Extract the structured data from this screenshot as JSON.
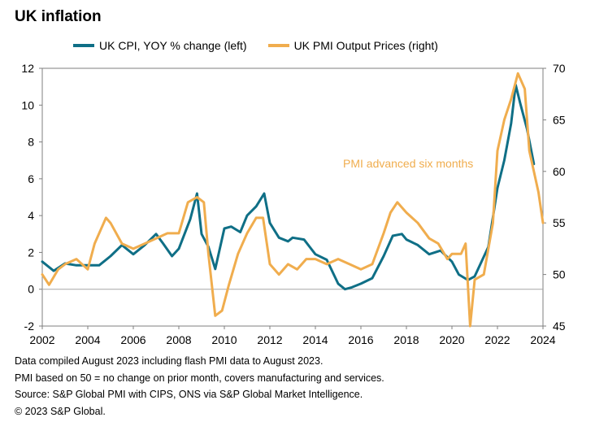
{
  "title": "UK inflation",
  "legend": [
    {
      "label": "UK CPI, YOY % change (left)",
      "color": "#0f6f86"
    },
    {
      "label": "UK PMI Output Prices (right)",
      "color": "#f0ad4e"
    }
  ],
  "notes": [
    "Data compiled August 2023 including flash PMI data to August 2023.",
    "PMI based on 50 = no change on prior month, covers manufacturing and services.",
    "Source: S&P Global PMI with CIPS, ONS via S&P Global Market Intelligence.",
    "© 2023 S&P Global."
  ],
  "chart_data": {
    "type": "line",
    "title": "UK inflation",
    "x_ticks": [
      "2002",
      "2004",
      "2006",
      "2008",
      "2010",
      "2012",
      "2014",
      "2016",
      "2018",
      "2020",
      "2022",
      "2024"
    ],
    "xlim": [
      2002,
      2024
    ],
    "y_left": {
      "lim": [
        -2,
        12
      ],
      "ticks": [
        "-2",
        "0",
        "2",
        "4",
        "6",
        "8",
        "10",
        "12"
      ]
    },
    "y_right": {
      "lim": [
        45,
        70
      ],
      "ticks": [
        "45",
        "50",
        "55",
        "60",
        "65",
        "70"
      ]
    },
    "annotation": "PMI advanced six months",
    "series": [
      {
        "name": "UK CPI, YOY % change (left)",
        "axis": "left",
        "color": "#0f6f86",
        "x": [
          2002,
          2002.5,
          2003,
          2003.5,
          2004,
          2004.5,
          2005,
          2005.5,
          2006,
          2006.5,
          2007,
          2007.3,
          2007.7,
          2008,
          2008.5,
          2008.8,
          2009,
          2009.3,
          2009.6,
          2010,
          2010.3,
          2010.7,
          2011,
          2011.4,
          2011.75,
          2012,
          2012.4,
          2012.8,
          2013,
          2013.5,
          2014,
          2014.5,
          2015,
          2015.3,
          2015.6,
          2016,
          2016.5,
          2017,
          2017.4,
          2017.8,
          2018,
          2018.5,
          2019,
          2019.5,
          2020,
          2020.3,
          2020.7,
          2021,
          2021.3,
          2021.6,
          2022,
          2022.3,
          2022.6,
          2022.8,
          2023,
          2023.3,
          2023.6
        ],
        "values": [
          1.5,
          1.0,
          1.4,
          1.3,
          1.3,
          1.3,
          1.8,
          2.4,
          1.9,
          2.4,
          3.0,
          2.5,
          1.8,
          2.2,
          3.8,
          5.2,
          3.0,
          2.3,
          1.1,
          3.3,
          3.4,
          3.1,
          4.0,
          4.5,
          5.2,
          3.6,
          2.8,
          2.6,
          2.8,
          2.7,
          1.9,
          1.6,
          0.3,
          0.0,
          0.1,
          0.3,
          0.6,
          1.8,
          2.9,
          3.0,
          2.7,
          2.4,
          1.9,
          2.1,
          1.5,
          0.8,
          0.5,
          0.7,
          1.5,
          2.3,
          5.5,
          7.0,
          9.0,
          11.1,
          10.1,
          8.7,
          6.8
        ]
      },
      {
        "name": "UK PMI Output Prices (right)",
        "axis": "right",
        "color": "#f0ad4e",
        "x": [
          2002,
          2002.3,
          2002.7,
          2003,
          2003.5,
          2004,
          2004.3,
          2004.8,
          2005,
          2005.5,
          2006,
          2006.5,
          2007,
          2007.5,
          2008,
          2008.4,
          2008.8,
          2009.1,
          2009.3,
          2009.6,
          2009.9,
          2010.2,
          2010.6,
          2011,
          2011.4,
          2011.7,
          2012,
          2012.4,
          2012.8,
          2013.2,
          2013.6,
          2014,
          2014.5,
          2015,
          2015.5,
          2016,
          2016.5,
          2017,
          2017.3,
          2017.6,
          2018,
          2018.5,
          2019,
          2019.4,
          2019.8,
          2020,
          2020.4,
          2020.6,
          2020.8,
          2021,
          2021.4,
          2021.8,
          2022,
          2022.3,
          2022.6,
          2022.9,
          2023.2,
          2023.4,
          2023.6,
          2023.8,
          2024
        ],
        "values": [
          50,
          49,
          50.5,
          51,
          51.5,
          50.5,
          53,
          55.5,
          55,
          53,
          52.5,
          53,
          53.5,
          54,
          54,
          57,
          57.5,
          57,
          52,
          46,
          46.5,
          49,
          52,
          54,
          55.5,
          55.5,
          51,
          50,
          51,
          50.5,
          51.5,
          51.5,
          51,
          51.5,
          51,
          50.5,
          51,
          54,
          56,
          57,
          56,
          55,
          53.5,
          53,
          51.5,
          52,
          52,
          53,
          45,
          49.5,
          50,
          55,
          62,
          65,
          67,
          69.5,
          68,
          62,
          60,
          58,
          55
        ]
      }
    ]
  }
}
